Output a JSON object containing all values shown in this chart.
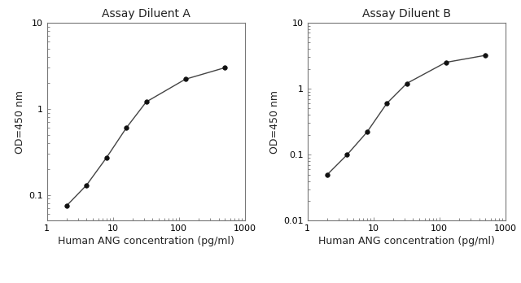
{
  "plot_a": {
    "title": "Assay Diluent A",
    "x": [
      2,
      4,
      8,
      16,
      32,
      125,
      500
    ],
    "y": [
      0.075,
      0.13,
      0.27,
      0.6,
      1.2,
      2.2,
      3.0
    ],
    "xlim": [
      1,
      1000
    ],
    "ylim": [
      0.05,
      10
    ],
    "yticks": [
      0.1,
      1,
      10
    ],
    "ytick_labels": [
      "0.1",
      "1",
      "10"
    ],
    "xticks": [
      1,
      10,
      100,
      1000
    ],
    "xtick_labels": [
      "1",
      "10",
      "100",
      "1000"
    ]
  },
  "plot_b": {
    "title": "Assay Diluent B",
    "x": [
      2,
      4,
      8,
      16,
      32,
      125,
      500
    ],
    "y": [
      0.05,
      0.1,
      0.22,
      0.6,
      1.2,
      2.5,
      3.2
    ],
    "xlim": [
      1,
      1000
    ],
    "ylim": [
      0.01,
      10
    ],
    "yticks": [
      0.01,
      0.1,
      1,
      10
    ],
    "ytick_labels": [
      "0.01",
      "0.1",
      "1",
      "10"
    ],
    "xticks": [
      1,
      10,
      100,
      1000
    ],
    "xtick_labels": [
      "1",
      "10",
      "100",
      "1000"
    ]
  },
  "xlabel": "Human ANG concentration (pg/ml)",
  "ylabel": "OD=450 nm",
  "line_color": "#444444",
  "marker": "o",
  "marker_color": "#111111",
  "marker_size": 4,
  "bg_color": "#ffffff",
  "title_fontsize": 10,
  "label_fontsize": 9,
  "tick_fontsize": 8
}
